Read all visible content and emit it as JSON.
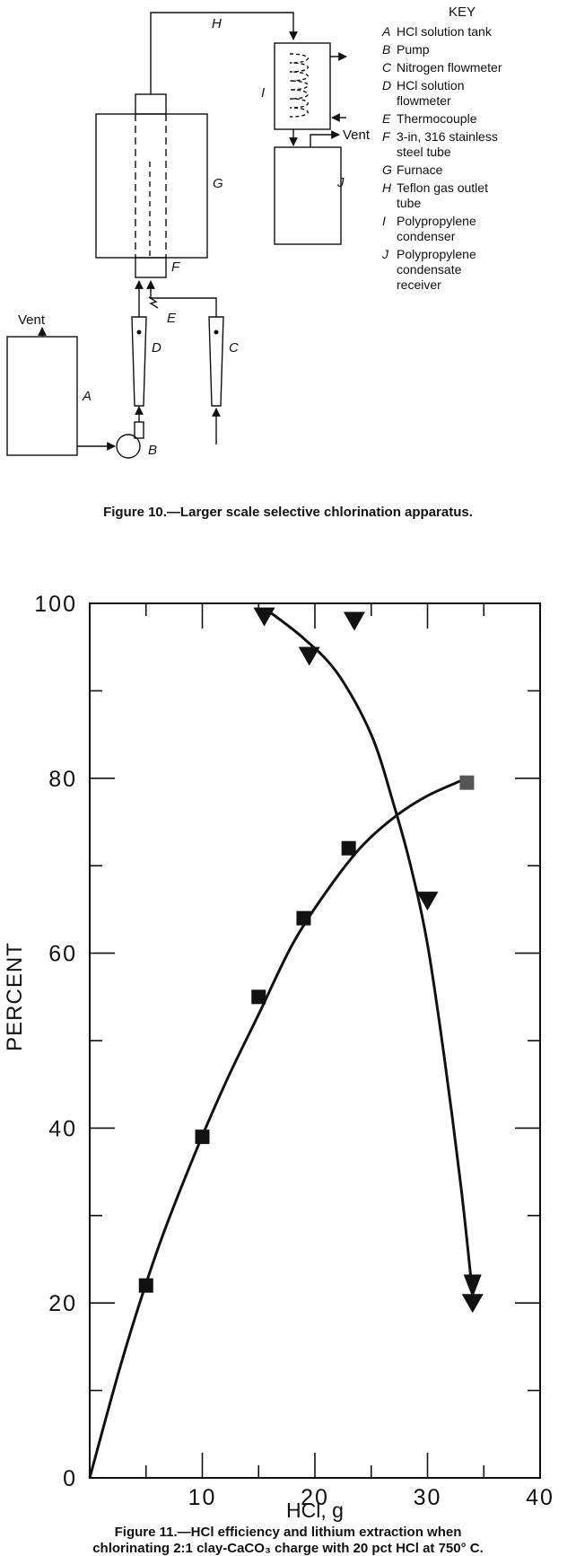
{
  "figure10": {
    "caption": "Figure 10.—Larger scale selective chlorination apparatus.",
    "key_title": "KEY",
    "key": [
      {
        "letter": "A",
        "lines": [
          "HCl solution tank"
        ]
      },
      {
        "letter": "B",
        "lines": [
          "Pump"
        ]
      },
      {
        "letter": "C",
        "lines": [
          "Nitrogen flowmeter"
        ]
      },
      {
        "letter": "D",
        "lines": [
          "HCl solution",
          "flowmeter"
        ]
      },
      {
        "letter": "E",
        "lines": [
          "Thermocouple"
        ]
      },
      {
        "letter": "F",
        "lines": [
          "3-in, 316 stainless",
          "steel tube"
        ]
      },
      {
        "letter": "G",
        "lines": [
          "Furnace"
        ]
      },
      {
        "letter": "H",
        "lines": [
          "Teflon gas outlet",
          "tube"
        ]
      },
      {
        "letter": "I",
        "lines": [
          "Polypropylene",
          "condenser"
        ]
      },
      {
        "letter": "J",
        "lines": [
          "Polypropylene",
          "condensate",
          "receiver"
        ]
      }
    ],
    "vent_labels": [
      "Vent",
      "Vent"
    ],
    "component_letters": {
      "A": "A",
      "B": "B",
      "C": "C",
      "D": "D",
      "E": "E",
      "F": "F",
      "G": "G",
      "H": "H",
      "I": "I",
      "J": "J"
    }
  },
  "figure11": {
    "caption_lines": [
      "Figure 11.—HCl efficiency and lithium extraction when",
      "chlorinating 2:1 clay-CaCO₃ charge with 20 pct HCl at 750° C."
    ]
  },
  "chart_data": {
    "type": "scatter",
    "xlabel": "HCl, g",
    "ylabel": "PERCENT",
    "xlim": [
      0,
      40
    ],
    "ylim": [
      0,
      100
    ],
    "xticks": [
      0,
      10,
      20,
      30,
      40
    ],
    "yticks": [
      0,
      20,
      40,
      60,
      80,
      100
    ],
    "x_tick_labels": [
      "10",
      "20",
      "30",
      "40"
    ],
    "y_tick_labels": [
      "0",
      "20",
      "40",
      "60",
      "80",
      "100"
    ],
    "grid": false,
    "series": [
      {
        "marker": "square",
        "color": "#111111",
        "x": [
          5,
          10,
          15,
          19,
          23,
          33.5
        ],
        "y": [
          22,
          39,
          55,
          64,
          72,
          79.5
        ],
        "curve_x": [
          0,
          3,
          6,
          9,
          12,
          15,
          18,
          21,
          24,
          27,
          30,
          33.5
        ],
        "curve_y": [
          0,
          14,
          26,
          36,
          45,
          53,
          61,
          67,
          72,
          75.5,
          78,
          80
        ]
      },
      {
        "marker": "triangle-down",
        "color": "#111111",
        "x": [
          15.5,
          19.5,
          23.5,
          30,
          34
        ],
        "y": [
          98.5,
          94,
          98,
          66,
          20
        ],
        "curve_x": [
          16,
          19,
          22,
          25,
          27,
          28.5,
          30,
          31.5,
          33,
          34
        ],
        "curve_y": [
          99,
          96,
          92,
          85,
          77,
          70,
          61,
          48,
          33,
          21
        ]
      }
    ]
  }
}
